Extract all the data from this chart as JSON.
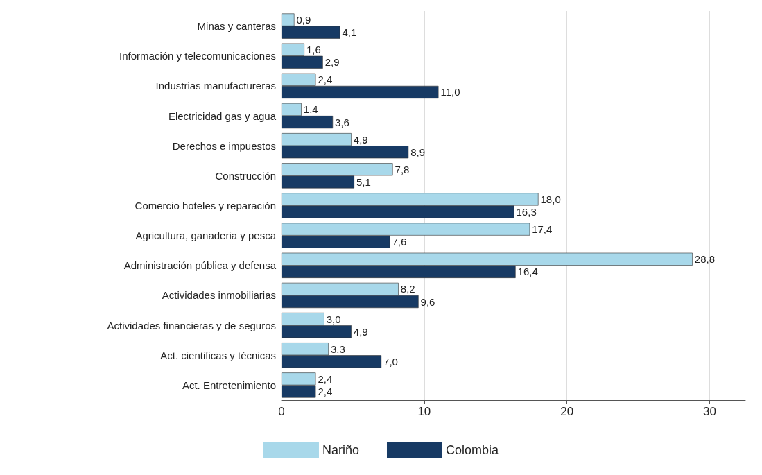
{
  "chart_data": {
    "type": "bar",
    "orientation": "horizontal",
    "categories": [
      "Minas y canteras",
      "Información y telecomunicaciones",
      "Industrias manufactureras",
      "Electricidad gas y agua",
      "Derechos e impuestos",
      "Construcción",
      "Comercio hoteles y reparación",
      "Agricultura, ganaderia y pesca",
      "Administración pública y defensa",
      "Actividades inmobiliarias",
      "Actividades financieras y de seguros",
      "Act. cientificas y técnicas",
      "Act. Entretenimiento"
    ],
    "series": [
      {
        "name": "Nariño",
        "color": "#a8d8ea",
        "values": [
          0.9,
          1.6,
          2.4,
          1.4,
          4.9,
          7.8,
          18.0,
          17.4,
          28.8,
          8.2,
          3.0,
          3.3,
          2.4
        ],
        "value_labels": [
          "0,9",
          "1,6",
          "2,4",
          "1,4",
          "4,9",
          "7,8",
          "18,0",
          "17,4",
          "28,8",
          "8,2",
          "3,0",
          "3,3",
          "2,4"
        ]
      },
      {
        "name": "Colombia",
        "color": "#173a64",
        "values": [
          4.1,
          2.9,
          11.0,
          3.6,
          8.9,
          5.1,
          16.3,
          7.6,
          16.4,
          9.6,
          4.9,
          7.0,
          2.4
        ],
        "value_labels": [
          "4,1",
          "2,9",
          "11,0",
          "3,6",
          "8,9",
          "5,1",
          "16,3",
          "7,6",
          "16,4",
          "9,6",
          "4,9",
          "7,0",
          "2,4"
        ]
      }
    ],
    "xlim": [
      0,
      32.5
    ],
    "xticks": [
      0,
      10,
      20,
      30
    ],
    "grid": "x",
    "legend": "bottom"
  }
}
